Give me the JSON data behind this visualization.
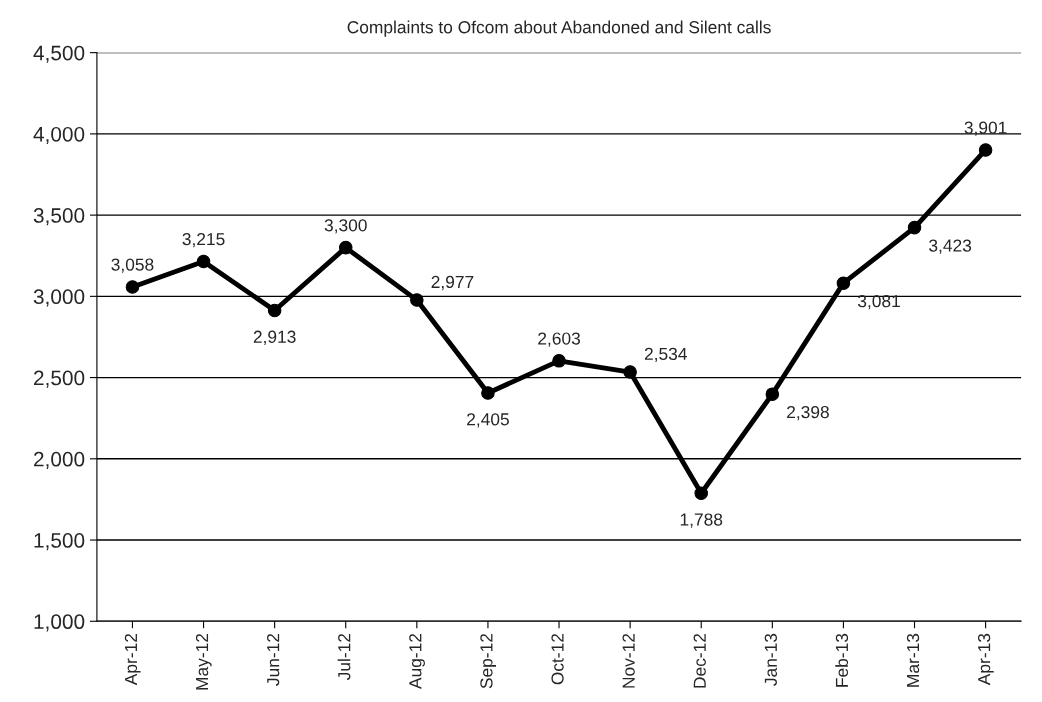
{
  "chart_data": {
    "type": "line",
    "title": "Complaints to Ofcom about Abandoned and Silent calls",
    "categories": [
      "Apr-12",
      "May-12",
      "Jun-12",
      "Jul-12",
      "Aug-12",
      "Sep-12",
      "Oct-12",
      "Nov-12",
      "Dec-12",
      "Jan-13",
      "Feb-13",
      "Mar-13",
      "Apr-13"
    ],
    "series": [
      {
        "color": "#000000",
        "values": [
          3058,
          3215,
          2913,
          3300,
          2977,
          2405,
          2603,
          2534,
          1788,
          2398,
          3081,
          3423,
          3901
        ],
        "value_labels": [
          "3,058",
          "3,215",
          "2,913",
          "3,300",
          "2,977",
          "2,405",
          "2,603",
          "2,534",
          "1,788",
          "2,398",
          "3,081",
          "3,423",
          "3,901"
        ]
      }
    ],
    "ylim": [
      1000,
      4500
    ],
    "yticks": [
      {
        "value": 1000,
        "label": "1,000"
      },
      {
        "value": 1500,
        "label": "1,500"
      },
      {
        "value": 2000,
        "label": "2,000"
      },
      {
        "value": 2500,
        "label": "2,500"
      },
      {
        "value": 3000,
        "label": "3,000"
      },
      {
        "value": 3500,
        "label": "3,500"
      },
      {
        "value": 4000,
        "label": "4,000"
      },
      {
        "value": 4500,
        "label": "4,500"
      }
    ],
    "grid": "y",
    "marker": "circle",
    "line_style": "solid"
  }
}
